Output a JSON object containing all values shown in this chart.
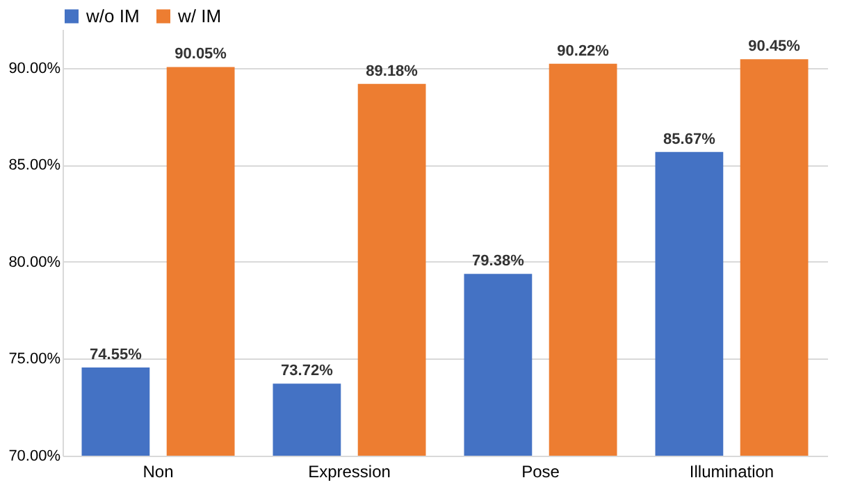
{
  "chart_data": {
    "type": "bar",
    "categories": [
      "Non",
      "Expression",
      "Pose",
      "Illumination"
    ],
    "series": [
      {
        "name": "w/o IM",
        "color": "#4472c4",
        "values": [
          74.55,
          73.72,
          79.38,
          85.67
        ],
        "value_labels": [
          "74.55%",
          "73.72%",
          "79.38%",
          "85.67%"
        ]
      },
      {
        "name": "w/ IM",
        "color": "#ed7d31",
        "values": [
          90.05,
          89.18,
          90.22,
          90.45
        ],
        "value_labels": [
          "90.05%",
          "89.18%",
          "90.22%",
          "90.45%"
        ]
      }
    ],
    "ylim": [
      70,
      92
    ],
    "yticks": [
      {
        "value": 70,
        "label": "70.00%"
      },
      {
        "value": 75,
        "label": "75.00%"
      },
      {
        "value": 80,
        "label": "80.00%"
      },
      {
        "value": 85,
        "label": "85.00%"
      },
      {
        "value": 90,
        "label": "90.00%"
      }
    ],
    "grid": "y",
    "legend": "top"
  }
}
